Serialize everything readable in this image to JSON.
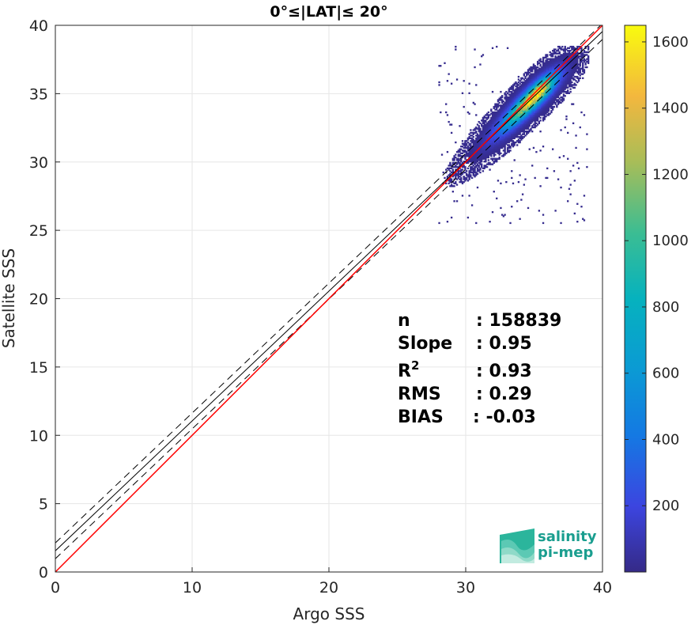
{
  "chart_data": {
    "type": "heatmap",
    "title": "0°≤|LAT|≤ 20°",
    "xlabel": "Argo SSS",
    "ylabel": "Satellite SSS",
    "xlim": [
      0,
      40
    ],
    "ylim": [
      0,
      40
    ],
    "xticks": [
      0,
      10,
      20,
      30,
      40
    ],
    "yticks": [
      0,
      5,
      10,
      15,
      20,
      25,
      30,
      35,
      40
    ],
    "grid": true,
    "colorbar": {
      "colormap": "parula",
      "range": [
        0,
        1650
      ],
      "ticks": [
        200,
        400,
        600,
        800,
        1000,
        1200,
        1400,
        1600
      ]
    },
    "density_cloud": {
      "x_range": [
        28,
        39
      ],
      "y_range": [
        25.5,
        38.5
      ],
      "peak_x": 35,
      "peak_y": 34.8,
      "peak_count": 1650
    },
    "lines": {
      "identity": {
        "slope": 1,
        "intercept": 0,
        "color": "#ff0000"
      },
      "fit": {
        "slope": 0.95,
        "intercept": 1.55,
        "color": "#000000"
      },
      "fit_band_offset": 0.58
    },
    "stats": [
      {
        "label": "n",
        "value": ": 158839"
      },
      {
        "label": "Slope",
        "value": ": 0.95"
      },
      {
        "label": "R",
        "sup": "2",
        "value": ": 0.93"
      },
      {
        "label": "RMS",
        "value": ": 0.29"
      },
      {
        "label": "BIAS",
        "value": ": -0.03"
      }
    ]
  },
  "logo": {
    "line1": "salinity",
    "line2": "pi-mep"
  }
}
